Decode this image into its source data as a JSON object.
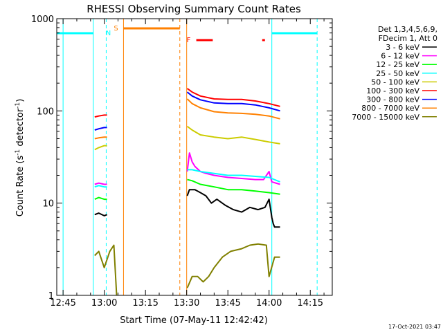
{
  "chart_data": {
    "type": "line",
    "title": "RHESSI Observing Summary Count Rates",
    "xlabel": "Start Time (07-May-11 12:42:42)",
    "ylabel_main": "Count Rate (s",
    "ylabel_sup1": "-1",
    "ylabel_mid": " detector",
    "ylabel_sup2": "-1",
    "ylabel_end": ")",
    "x_unit": "minutes since 12:00 UT",
    "xlim": [
      42.7,
      143.0
    ],
    "ylim": [
      1,
      1000
    ],
    "y_scale": "log",
    "x_ticks": [
      {
        "v": 45,
        "label": "12:45"
      },
      {
        "v": 60,
        "label": "13:00"
      },
      {
        "v": 75,
        "label": "13:15"
      },
      {
        "v": 90,
        "label": "13:30"
      },
      {
        "v": 105,
        "label": "13:45"
      },
      {
        "v": 120,
        "label": "14:00"
      },
      {
        "v": 135,
        "label": "14:15"
      }
    ],
    "y_ticks": [
      {
        "v": 1,
        "label": "1"
      },
      {
        "v": 10,
        "label": "10"
      },
      {
        "v": 100,
        "label": "100"
      },
      {
        "v": 1000,
        "label": "1000"
      }
    ],
    "legend": {
      "position": "right",
      "header": [
        "Det 1,3,4,5,6,9,",
        "FDecim 1, Att 0"
      ]
    },
    "series": [
      {
        "name": "3 - 6 keV",
        "color": "#000000",
        "segments": [
          {
            "x": [
              56.5,
              58.0,
              60.0,
              61.0
            ],
            "y": [
              7.5,
              7.8,
              7.3,
              7.5
            ]
          },
          {
            "x": [
              90.2,
              91.0,
              93.0,
              95.0,
              97.0,
              99.0,
              101.0,
              104.0,
              107.0,
              110.0,
              113.0,
              116.0,
              118.5,
              120.0,
              121.0,
              121.5,
              122.0,
              124.0
            ],
            "y": [
              12.0,
              14.0,
              14.0,
              13.0,
              12.0,
              10.0,
              11.0,
              9.5,
              8.5,
              8.0,
              9.0,
              8.5,
              9.0,
              11.0,
              7.0,
              6.0,
              5.5,
              5.5
            ]
          }
        ]
      },
      {
        "name": "6 - 12 keV",
        "color": "#ff00ff",
        "segments": [
          {
            "x": [
              56.5,
              58.0,
              60.0,
              61.0
            ],
            "y": [
              16.0,
              16.5,
              16.0,
              16.0
            ]
          },
          {
            "x": [
              90.2,
              91.0,
              92.0,
              93.0,
              95.0,
              97.0,
              100.0,
              105.0,
              110.0,
              115.0,
              118.0,
              120.0,
              121.0,
              124.0
            ],
            "y": [
              22.0,
              35.0,
              28.0,
              25.0,
              22.0,
              21.0,
              20.0,
              19.0,
              18.5,
              18.0,
              18.0,
              22.0,
              17.0,
              16.0
            ]
          }
        ]
      },
      {
        "name": "12 - 25 keV",
        "color": "#00ff00",
        "segments": [
          {
            "x": [
              56.5,
              58.0,
              60.0,
              61.0
            ],
            "y": [
              11.0,
              11.5,
              11.0,
              11.0
            ]
          },
          {
            "x": [
              90.2,
              92.0,
              95.0,
              100.0,
              105.0,
              110.0,
              115.0,
              120.0,
              124.0
            ],
            "y": [
              18.0,
              17.5,
              16.0,
              15.0,
              14.0,
              14.0,
              13.5,
              13.0,
              12.5
            ]
          }
        ]
      },
      {
        "name": "25 - 50 keV",
        "color": "#00ffff",
        "segments": [
          {
            "x": [
              56.5,
              58.0,
              60.0,
              61.0
            ],
            "y": [
              15.0,
              15.5,
              15.0,
              15.0
            ]
          },
          {
            "x": [
              90.2,
              92.0,
              95.0,
              100.0,
              105.0,
              110.0,
              115.0,
              120.0,
              124.0
            ],
            "y": [
              23.0,
              23.0,
              22.0,
              21.0,
              20.0,
              20.0,
              19.5,
              19.0,
              17.0
            ]
          }
        ]
      },
      {
        "name": "50 - 100 keV",
        "color": "#cccc00",
        "segments": [
          {
            "x": [
              56.5,
              58.0,
              60.0,
              61.0
            ],
            "y": [
              38.0,
              40.0,
              42.0,
              42.0
            ]
          },
          {
            "x": [
              90.2,
              92.0,
              95.0,
              100.0,
              105.0,
              110.0,
              115.0,
              120.0,
              124.0
            ],
            "y": [
              68.0,
              62.0,
              55.0,
              52.0,
              50.0,
              52.0,
              49.0,
              46.0,
              44.0
            ]
          }
        ]
      },
      {
        "name": "100 - 300 keV",
        "color": "#ff0000",
        "segments": [
          {
            "x": [
              56.5,
              58.0,
              60.0,
              61.0
            ],
            "y": [
              86.0,
              88.0,
              90.0,
              90.0
            ]
          },
          {
            "x": [
              90.2,
              92.0,
              95.0,
              100.0,
              105.0,
              110.0,
              115.0,
              120.0,
              124.0
            ],
            "y": [
              175.0,
              160.0,
              145.0,
              135.0,
              133.0,
              133.0,
              128.0,
              120.0,
              112.0
            ]
          }
        ]
      },
      {
        "name": "300 - 800 keV",
        "color": "#0000ff",
        "segments": [
          {
            "x": [
              56.5,
              58.0,
              60.0,
              61.0
            ],
            "y": [
              62.0,
              64.0,
              66.0,
              66.0
            ]
          },
          {
            "x": [
              90.2,
              92.0,
              95.0,
              100.0,
              105.0,
              110.0,
              115.0,
              120.0,
              124.0
            ],
            "y": [
              160.0,
              145.0,
              132.0,
              122.0,
              120.0,
              120.0,
              116.0,
              108.0,
              100.0
            ]
          }
        ]
      },
      {
        "name": "800 - 7000 keV",
        "color": "#ff8000",
        "segments": [
          {
            "x": [
              56.5,
              58.0,
              60.0,
              61.0
            ],
            "y": [
              50.0,
              51.0,
              52.0,
              52.0
            ]
          },
          {
            "x": [
              90.2,
              92.0,
              95.0,
              100.0,
              105.0,
              110.0,
              115.0,
              120.0,
              124.0
            ],
            "y": [
              135.0,
              120.0,
              108.0,
              98.0,
              95.0,
              94.0,
              92.0,
              88.0,
              82.0
            ]
          }
        ]
      },
      {
        "name": "7000 - 15000 keV",
        "color": "#808000",
        "segments": [
          {
            "x": [
              56.5,
              58.0,
              60.0,
              62.0,
              63.5,
              64.5
            ],
            "y": [
              2.7,
              3.0,
              2.0,
              3.0,
              3.5,
              1.0
            ]
          },
          {
            "x": [
              90.2,
              92.0,
              94.0,
              96.0,
              98.0,
              100.0,
              103.0,
              106.0,
              110.0,
              113.0,
              116.0,
              119.0,
              120.0,
              122.0,
              124.0
            ],
            "y": [
              1.2,
              1.6,
              1.6,
              1.4,
              1.6,
              2.0,
              2.6,
              3.0,
              3.2,
              3.5,
              3.6,
              3.5,
              1.6,
              2.6,
              2.6
            ]
          }
        ]
      }
    ],
    "markers": {
      "night_color": "#00ffff",
      "saa_color": "#ff8000",
      "flare_color": "#ff0000",
      "night_label": "N",
      "saa_label": "S",
      "flare_label": "F",
      "night_bars": [
        {
          "x0": 42.7,
          "x1": 56.0
        },
        {
          "x0": 121.0,
          "x1": 137.5
        }
      ],
      "night_solid_lines": [
        45.0,
        56.0,
        121.0
      ],
      "night_dashed_lines": [
        60.7,
        137.5
      ],
      "saa_bars": [
        {
          "x0": 67.0,
          "x1": 87.5
        }
      ],
      "saa_solid_lines": [
        67.0,
        90.0
      ],
      "saa_dashed_lines": [
        87.5
      ],
      "flare_bars": [
        {
          "x0": 93.5,
          "x1": 99.5
        },
        {
          "x0": 117.5,
          "x1": 118.5
        }
      ]
    },
    "grid": false
  },
  "footer": {
    "timestamp": "17-Oct-2021 03:47"
  }
}
